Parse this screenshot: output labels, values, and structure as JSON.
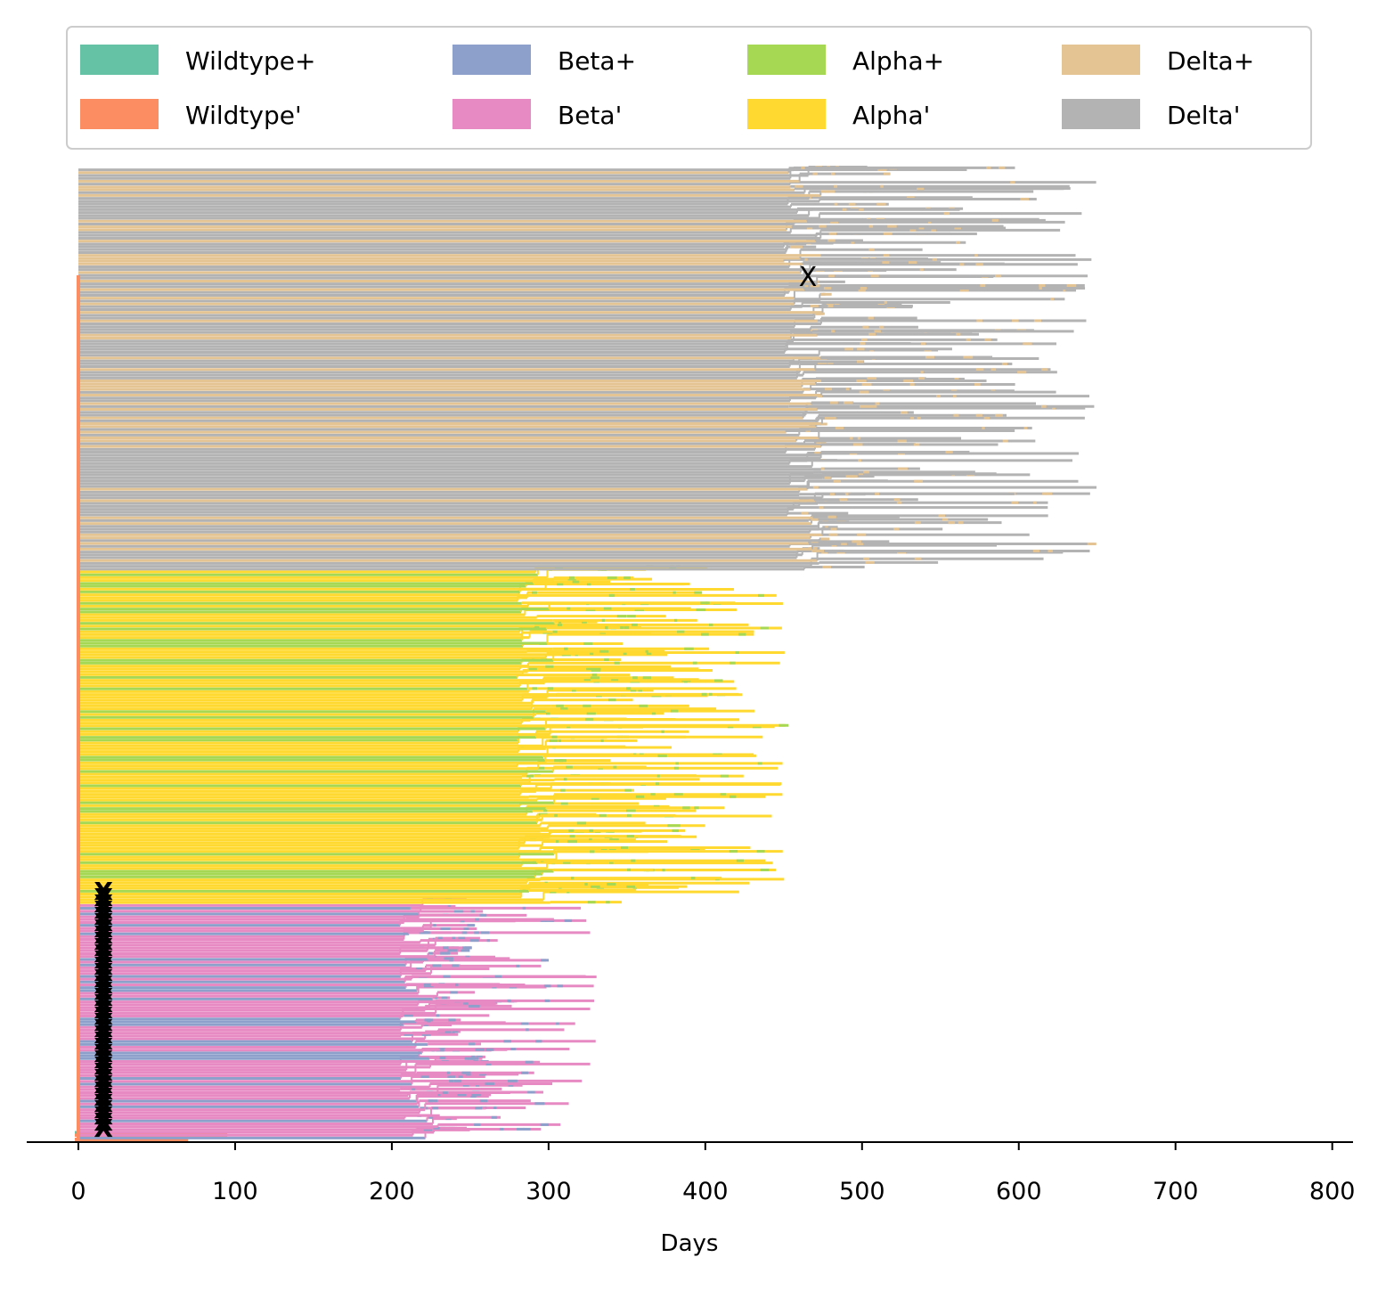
{
  "chart_data": {
    "type": "tree",
    "xlabel": "Days",
    "ylabel": "",
    "title": "",
    "xlim": [
      -32,
      812
    ],
    "xticks": [
      0,
      100,
      200,
      300,
      400,
      500,
      600,
      700,
      800
    ],
    "xtick_labels": [
      "0",
      "100",
      "200",
      "300",
      "400",
      "500",
      "600",
      "700",
      "800"
    ],
    "grid": false,
    "legend": {
      "placement": "top",
      "columns": 4,
      "entries": [
        {
          "label": "Wildtype+",
          "color": "#66c2a5"
        },
        {
          "label": "Wildtype'",
          "color": "#fc8d62"
        },
        {
          "label": "Beta+",
          "color": "#8da0cb"
        },
        {
          "label": "Beta'",
          "color": "#e78ac3"
        },
        {
          "label": "Alpha+",
          "color": "#a6d854"
        },
        {
          "label": "Alpha'",
          "color": "#ffd92f"
        },
        {
          "label": "Delta+",
          "color": "#e5c494"
        },
        {
          "label": "Delta'",
          "color": "#b3b3b3"
        }
      ]
    },
    "clades": [
      {
        "variant": "Wildtype",
        "start_day": 0,
        "branch_day": 0,
        "end_day_range": [
          0,
          95
        ],
        "levels": [
          0.0,
          0.01
        ]
      },
      {
        "variant": "Beta",
        "start_day": 0,
        "branch_day": 205,
        "end_day_range": [
          230,
          333
        ],
        "levels": [
          0.0,
          0.24
        ]
      },
      {
        "variant": "Alpha",
        "start_day": 0,
        "branch_day": 280,
        "end_day_range": [
          330,
          453
        ],
        "levels": [
          0.24,
          0.58
        ]
      },
      {
        "variant": "Delta",
        "start_day": 0,
        "branch_day": 450,
        "end_day_range": [
          470,
          650
        ],
        "levels": [
          0.58,
          0.99
        ]
      }
    ],
    "markers": [
      {
        "label": "X",
        "day": 470,
        "level": 0.881
      },
      {
        "label": "X",
        "day": 16,
        "level": 0.0
      }
    ]
  }
}
